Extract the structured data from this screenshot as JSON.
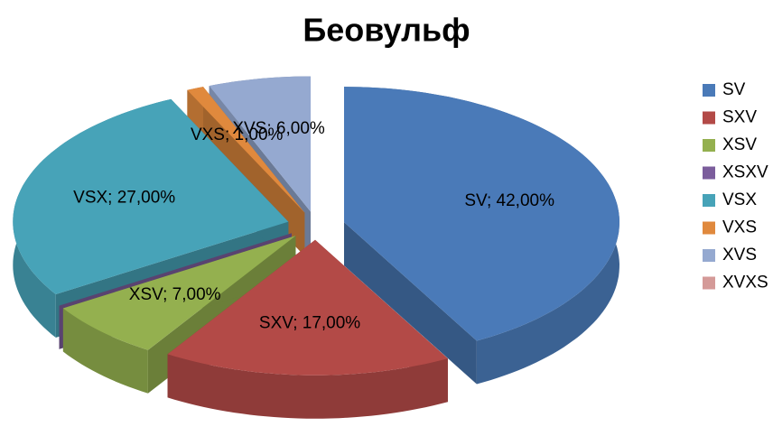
{
  "chart_data": {
    "type": "pie",
    "title": "Беовульф",
    "categories": [
      "SV",
      "SXV",
      "XSV",
      "XSXV",
      "VSX",
      "VXS",
      "XVS",
      "XVXS"
    ],
    "values": [
      42,
      17,
      7,
      0,
      27,
      1,
      6,
      0
    ],
    "value_labels": [
      "SV; 42,00%",
      "SXV; 17,00%",
      "XSV; 7,00%",
      null,
      "VSX; 27,00%",
      "VXS; 1,00%",
      "XVS; 6,00%",
      null
    ],
    "colors": [
      "#4a7ab8",
      "#b34a47",
      "#94b04f",
      "#7b5d9c",
      "#47a3b8",
      "#e0893d",
      "#95a9d0",
      "#d49a98"
    ],
    "legend": "right"
  }
}
